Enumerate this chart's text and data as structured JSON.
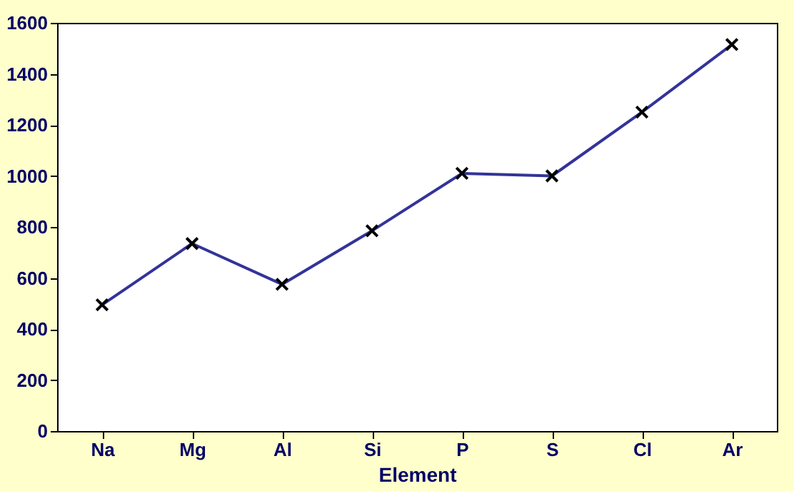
{
  "chart_data": {
    "type": "line",
    "xlabel": "Element",
    "categories": [
      "Na",
      "Mg",
      "Al",
      "Si",
      "P",
      "S",
      "Cl",
      "Ar"
    ],
    "series": [
      {
        "color": "#333399",
        "values": [
          495,
          735,
          575,
          785,
          1010,
          1000,
          1250,
          1515
        ]
      }
    ],
    "ylim": [
      0,
      1600
    ],
    "yticks": [
      0,
      200,
      400,
      600,
      800,
      1000,
      1200,
      1400,
      1600
    ],
    "grid": false,
    "marker": "cross",
    "line_style": "solid"
  }
}
